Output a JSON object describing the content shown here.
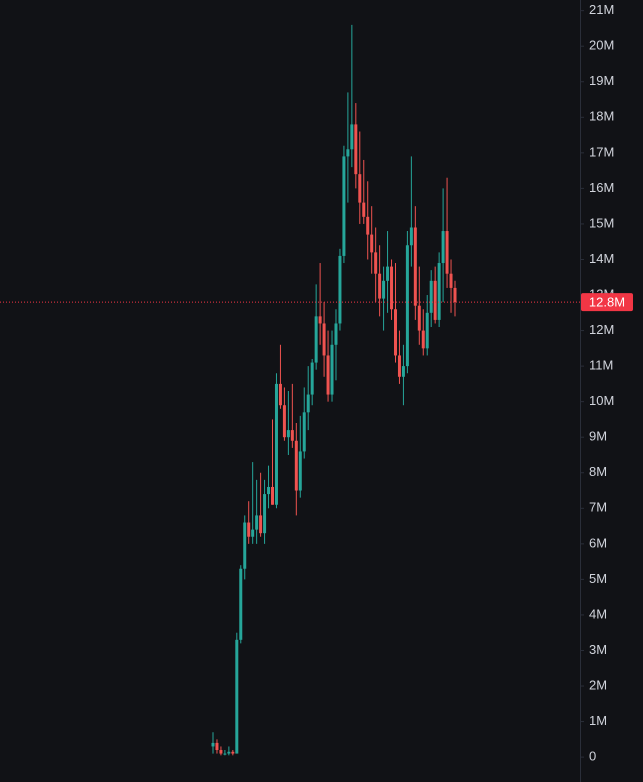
{
  "chart_data": {
    "type": "candlestick",
    "up_color": "#26a69a",
    "down_color": "#ef5350",
    "ylim": [
      -0.7,
      21.3
    ],
    "yticks": [
      {
        "value": 0,
        "label": "0"
      },
      {
        "value": 1,
        "label": "1M"
      },
      {
        "value": 2,
        "label": "2M"
      },
      {
        "value": 3,
        "label": "3M"
      },
      {
        "value": 4,
        "label": "4M"
      },
      {
        "value": 5,
        "label": "5M"
      },
      {
        "value": 6,
        "label": "6M"
      },
      {
        "value": 7,
        "label": "7M"
      },
      {
        "value": 8,
        "label": "8M"
      },
      {
        "value": 9,
        "label": "9M"
      },
      {
        "value": 10,
        "label": "10M"
      },
      {
        "value": 11,
        "label": "11M"
      },
      {
        "value": 12,
        "label": "12M"
      },
      {
        "value": 13,
        "label": "13M"
      },
      {
        "value": 14,
        "label": "14M"
      },
      {
        "value": 15,
        "label": "15M"
      },
      {
        "value": 16,
        "label": "16M"
      },
      {
        "value": 17,
        "label": "17M"
      },
      {
        "value": 18,
        "label": "18M"
      },
      {
        "value": 19,
        "label": "19M"
      },
      {
        "value": 20,
        "label": "20M"
      },
      {
        "value": 21,
        "label": "21M"
      }
    ],
    "last_price": {
      "value": 12.8,
      "label": "12.8M",
      "color": "#f23645"
    },
    "open": [
      0.3,
      0.4,
      0.2,
      0.1,
      0.1,
      0.15,
      0.1,
      3.3,
      5.3,
      6.6,
      6.2,
      6.4,
      6.8,
      6.3,
      7.4,
      7.6,
      7.1,
      10.5,
      9.9,
      9.0,
      9.2,
      8.9,
      7.5,
      8.6,
      9.7,
      10.2,
      11.1,
      12.4,
      12.2,
      11.3,
      10.2,
      11.6,
      12.2,
      14.1,
      16.9,
      17.1,
      17.8,
      16.4,
      15.6,
      15.2,
      14.7,
      14.2,
      13.6,
      12.9,
      13.4,
      13.8,
      12.6,
      11.3,
      10.7,
      11.0,
      14.4,
      14.9,
      12.7,
      12.0,
      11.5,
      12.5,
      13.4,
      12.3,
      13.9,
      14.8,
      13.6,
      13.2
    ],
    "high": [
      0.7,
      0.5,
      0.3,
      0.2,
      0.3,
      0.2,
      3.5,
      5.4,
      6.8,
      7.2,
      8.3,
      7.8,
      8.0,
      7.8,
      8.2,
      9.5,
      10.8,
      11.6,
      10.4,
      10.3,
      10.5,
      9.4,
      9.6,
      10.4,
      11.0,
      11.2,
      13.3,
      13.9,
      12.8,
      12.0,
      12.0,
      12.6,
      14.3,
      17.2,
      18.7,
      20.6,
      18.4,
      17.6,
      16.8,
      16.2,
      15.5,
      14.9,
      14.4,
      13.8,
      14.8,
      14.0,
      13.9,
      12.0,
      11.6,
      14.8,
      16.9,
      15.5,
      13.8,
      12.6,
      13.0,
      13.7,
      13.8,
      14.2,
      16.0,
      16.3,
      14.0,
      13.4
    ],
    "low": [
      0.1,
      0.1,
      0.05,
      0.05,
      0.05,
      0.05,
      0.1,
      3.2,
      5.0,
      6.0,
      6.0,
      6.0,
      6.2,
      6.0,
      7.0,
      7.1,
      7.0,
      9.8,
      8.9,
      8.5,
      8.7,
      6.8,
      7.3,
      8.4,
      9.2,
      9.9,
      10.9,
      11.6,
      10.7,
      10.0,
      10.0,
      10.6,
      12.0,
      13.9,
      15.6,
      16.6,
      16.0,
      15.0,
      15.0,
      14.0,
      13.6,
      12.8,
      12.4,
      12.0,
      12.5,
      12.3,
      11.1,
      10.5,
      9.9,
      10.8,
      13.8,
      12.3,
      11.6,
      11.3,
      11.3,
      12.1,
      12.2,
      12.1,
      12.8,
      13.2,
      12.5,
      12.4
    ],
    "close": [
      0.4,
      0.2,
      0.1,
      0.1,
      0.15,
      0.1,
      3.3,
      5.3,
      6.6,
      6.2,
      6.4,
      6.8,
      6.3,
      7.4,
      7.6,
      7.1,
      10.5,
      9.9,
      9.0,
      9.2,
      8.9,
      7.5,
      8.6,
      9.7,
      10.2,
      11.1,
      12.4,
      12.2,
      11.3,
      10.2,
      11.6,
      12.2,
      14.1,
      16.9,
      17.1,
      17.8,
      16.4,
      15.6,
      15.2,
      14.7,
      14.2,
      13.6,
      12.9,
      13.4,
      13.8,
      12.6,
      11.3,
      10.7,
      11.0,
      14.4,
      14.9,
      12.7,
      12.0,
      11.5,
      12.5,
      13.4,
      12.3,
      13.9,
      14.8,
      13.6,
      13.2,
      12.8
    ]
  }
}
